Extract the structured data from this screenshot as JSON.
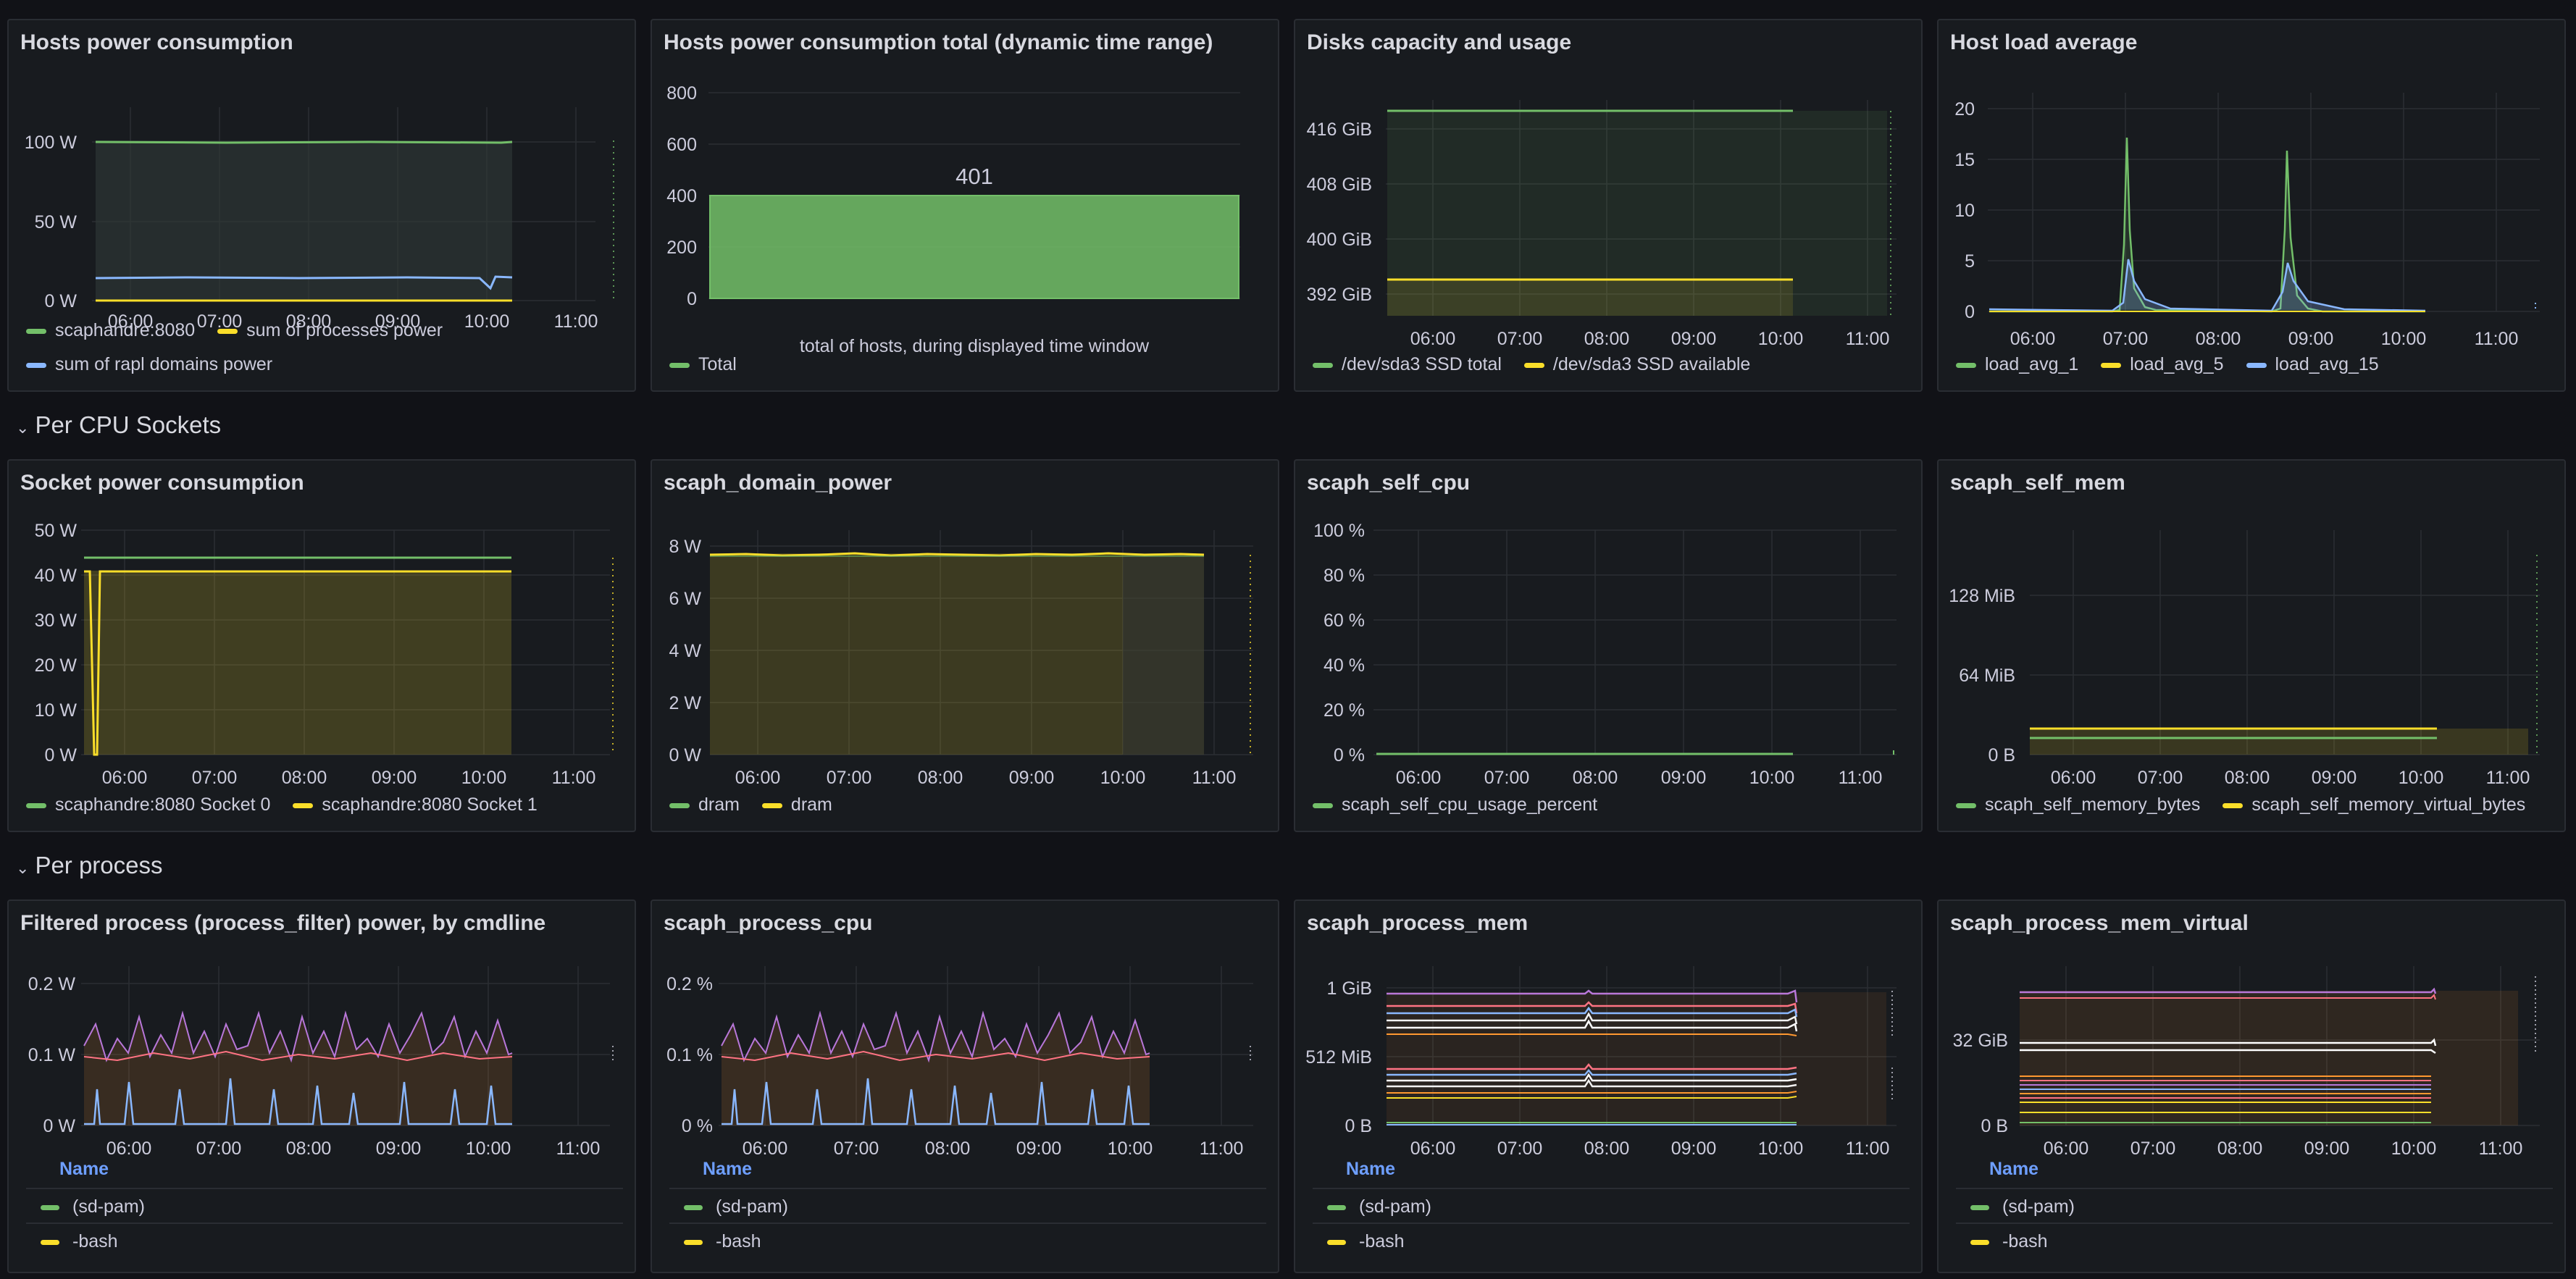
{
  "colors": {
    "green": "#73bf69",
    "yellow": "#fade2a",
    "blue": "#8ab8ff",
    "purple": "#b877d9",
    "pink": "#ff7383",
    "orange": "#ff9830",
    "grid": "#2b2e33",
    "axis_text": "#ccccdc",
    "link": "#6e9fff"
  },
  "time_ticks": [
    "06:00",
    "07:00",
    "08:00",
    "09:00",
    "10:00",
    "11:00"
  ],
  "rows": {
    "cpu_sockets": "Per CPU Sockets",
    "per_process": "Per process"
  },
  "panels": {
    "hosts_power": {
      "title": "Hosts power consumption",
      "y_ticks": [
        "100 W",
        "50 W",
        "0 W"
      ],
      "legend": [
        {
          "label": "scaphandre:8080",
          "color": "#73bf69"
        },
        {
          "label": "sum of processes power",
          "color": "#fade2a"
        },
        {
          "label": "sum of rapl domains power",
          "color": "#8ab8ff"
        }
      ]
    },
    "hosts_total": {
      "title": "Hosts power consumption total (dynamic time range)",
      "y_ticks": [
        "800",
        "600",
        "400",
        "200",
        "0"
      ],
      "bar_value": "401",
      "x_label": "total of hosts, during displayed time window",
      "legend": [
        {
          "label": "Total",
          "color": "#73bf69"
        }
      ]
    },
    "disks": {
      "title": "Disks capacity and usage",
      "y_ticks": [
        "416 GiB",
        "408 GiB",
        "400 GiB",
        "392 GiB"
      ],
      "legend": [
        {
          "label": "/dev/sda3 SSD total",
          "color": "#73bf69"
        },
        {
          "label": "/dev/sda3 SSD available",
          "color": "#fade2a"
        }
      ]
    },
    "load_avg": {
      "title": "Host load average",
      "y_ticks": [
        "20",
        "15",
        "10",
        "5",
        "0"
      ],
      "legend": [
        {
          "label": "load_avg_1",
          "color": "#73bf69"
        },
        {
          "label": "load_avg_5",
          "color": "#fade2a"
        },
        {
          "label": "load_avg_15",
          "color": "#8ab8ff"
        }
      ]
    },
    "socket_power": {
      "title": "Socket power consumption",
      "y_ticks": [
        "50 W",
        "40 W",
        "30 W",
        "20 W",
        "10 W",
        "0 W"
      ],
      "legend": [
        {
          "label": "scaphandre:8080 Socket 0",
          "color": "#73bf69"
        },
        {
          "label": "scaphandre:8080 Socket 1",
          "color": "#fade2a"
        }
      ]
    },
    "domain_power": {
      "title": "scaph_domain_power",
      "y_ticks": [
        "8 W",
        "6 W",
        "4 W",
        "2 W",
        "0 W"
      ],
      "legend": [
        {
          "label": "dram",
          "color": "#73bf69"
        },
        {
          "label": "dram",
          "color": "#fade2a"
        }
      ]
    },
    "self_cpu": {
      "title": "scaph_self_cpu",
      "y_ticks": [
        "100 %",
        "80 %",
        "60 %",
        "40 %",
        "20 %",
        "0 %"
      ],
      "legend": [
        {
          "label": "scaph_self_cpu_usage_percent",
          "color": "#73bf69"
        }
      ]
    },
    "self_mem": {
      "title": "scaph_self_mem",
      "y_ticks": [
        "128 MiB",
        "64 MiB",
        "0 B"
      ],
      "legend": [
        {
          "label": "scaph_self_memory_bytes",
          "color": "#73bf69"
        },
        {
          "label": "scaph_self_memory_virtual_bytes",
          "color": "#fade2a"
        }
      ]
    },
    "process_power": {
      "title": "Filtered process (process_filter) power, by cmdline",
      "y_ticks": [
        "0.2 W",
        "0.1 W",
        "0 W"
      ],
      "table_header": "Name",
      "table_rows": [
        {
          "label": "(sd-pam)",
          "color": "#73bf69"
        },
        {
          "label": "-bash",
          "color": "#fade2a"
        }
      ]
    },
    "process_cpu": {
      "title": "scaph_process_cpu",
      "y_ticks": [
        "0.2 %",
        "0.1 %",
        "0 %"
      ],
      "table_header": "Name",
      "table_rows": [
        {
          "label": "(sd-pam)",
          "color": "#73bf69"
        },
        {
          "label": "-bash",
          "color": "#fade2a"
        }
      ]
    },
    "process_mem": {
      "title": "scaph_process_mem",
      "y_ticks": [
        "1 GiB",
        "512 MiB",
        "0 B"
      ],
      "table_header": "Name",
      "table_rows": [
        {
          "label": "(sd-pam)",
          "color": "#73bf69"
        },
        {
          "label": "-bash",
          "color": "#fade2a"
        }
      ]
    },
    "process_mem_virtual": {
      "title": "scaph_process_mem_virtual",
      "y_ticks": [
        "32 GiB",
        "0 B"
      ],
      "table_header": "Name",
      "table_rows": [
        {
          "label": "(sd-pam)",
          "color": "#73bf69"
        },
        {
          "label": "-bash",
          "color": "#fade2a"
        }
      ]
    }
  }
}
